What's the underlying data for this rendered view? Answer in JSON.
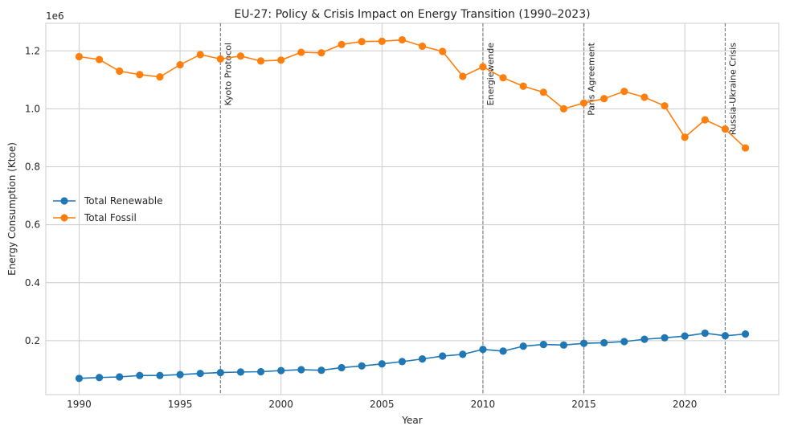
{
  "chart_data": {
    "type": "line",
    "title": "EU-27: Policy & Crisis Impact on Energy Transition (1990–2023)",
    "xlabel": "Year",
    "ylabel": "Energy Consumption (Ktoe)",
    "y_offset_label": "1e6",
    "xlim": [
      1988.35,
      2024.65
    ],
    "ylim": [
      14000,
      1295000
    ],
    "x_ticks": [
      1990,
      1995,
      2000,
      2005,
      2010,
      2015,
      2020
    ],
    "x_tick_labels": [
      "1990",
      "1995",
      "2000",
      "2005",
      "2010",
      "2015",
      "2020"
    ],
    "y_ticks": [
      200000,
      400000,
      600000,
      800000,
      1000000,
      1200000
    ],
    "y_tick_labels": [
      "0.2",
      "0.4",
      "0.6",
      "0.8",
      "1.0",
      "1.2"
    ],
    "grid": true,
    "legend_position": "center-left",
    "x": [
      1990,
      1991,
      1992,
      1993,
      1994,
      1995,
      1996,
      1997,
      1998,
      1999,
      2000,
      2001,
      2002,
      2003,
      2004,
      2005,
      2006,
      2007,
      2008,
      2009,
      2010,
      2011,
      2012,
      2013,
      2014,
      2015,
      2016,
      2017,
      2018,
      2019,
      2020,
      2021,
      2022,
      2023
    ],
    "series": [
      {
        "name": "Total Renewable",
        "color": "#1f77b4",
        "values": [
          70000,
          73000,
          75000,
          80000,
          80000,
          83000,
          87000,
          90000,
          92000,
          93000,
          97000,
          100000,
          98000,
          107000,
          113000,
          120000,
          128000,
          137000,
          147000,
          153000,
          170000,
          164000,
          181000,
          187000,
          185000,
          191000,
          193000,
          197000,
          205000,
          210000,
          216000,
          226000,
          217000,
          223000
        ]
      },
      {
        "name": "Total Fossil",
        "color": "#ff7f0e",
        "values": [
          1180000,
          1170000,
          1130000,
          1118000,
          1110000,
          1152000,
          1187000,
          1172000,
          1182000,
          1165000,
          1168000,
          1195000,
          1193000,
          1222000,
          1232000,
          1233000,
          1238000,
          1216000,
          1198000,
          1112000,
          1145000,
          1107000,
          1078000,
          1057000,
          1000000,
          1020000,
          1035000,
          1060000,
          1040000,
          1010000,
          902000,
          962000,
          930000,
          865000
        ]
      }
    ],
    "events": [
      {
        "year": 1997,
        "label": "Kyoto Protocol"
      },
      {
        "year": 2010,
        "label": "Energiewende"
      },
      {
        "year": 2015,
        "label": "Paris Agreement"
      },
      {
        "year": 2022,
        "label": "Russia-Ukraine Crisis"
      }
    ]
  }
}
